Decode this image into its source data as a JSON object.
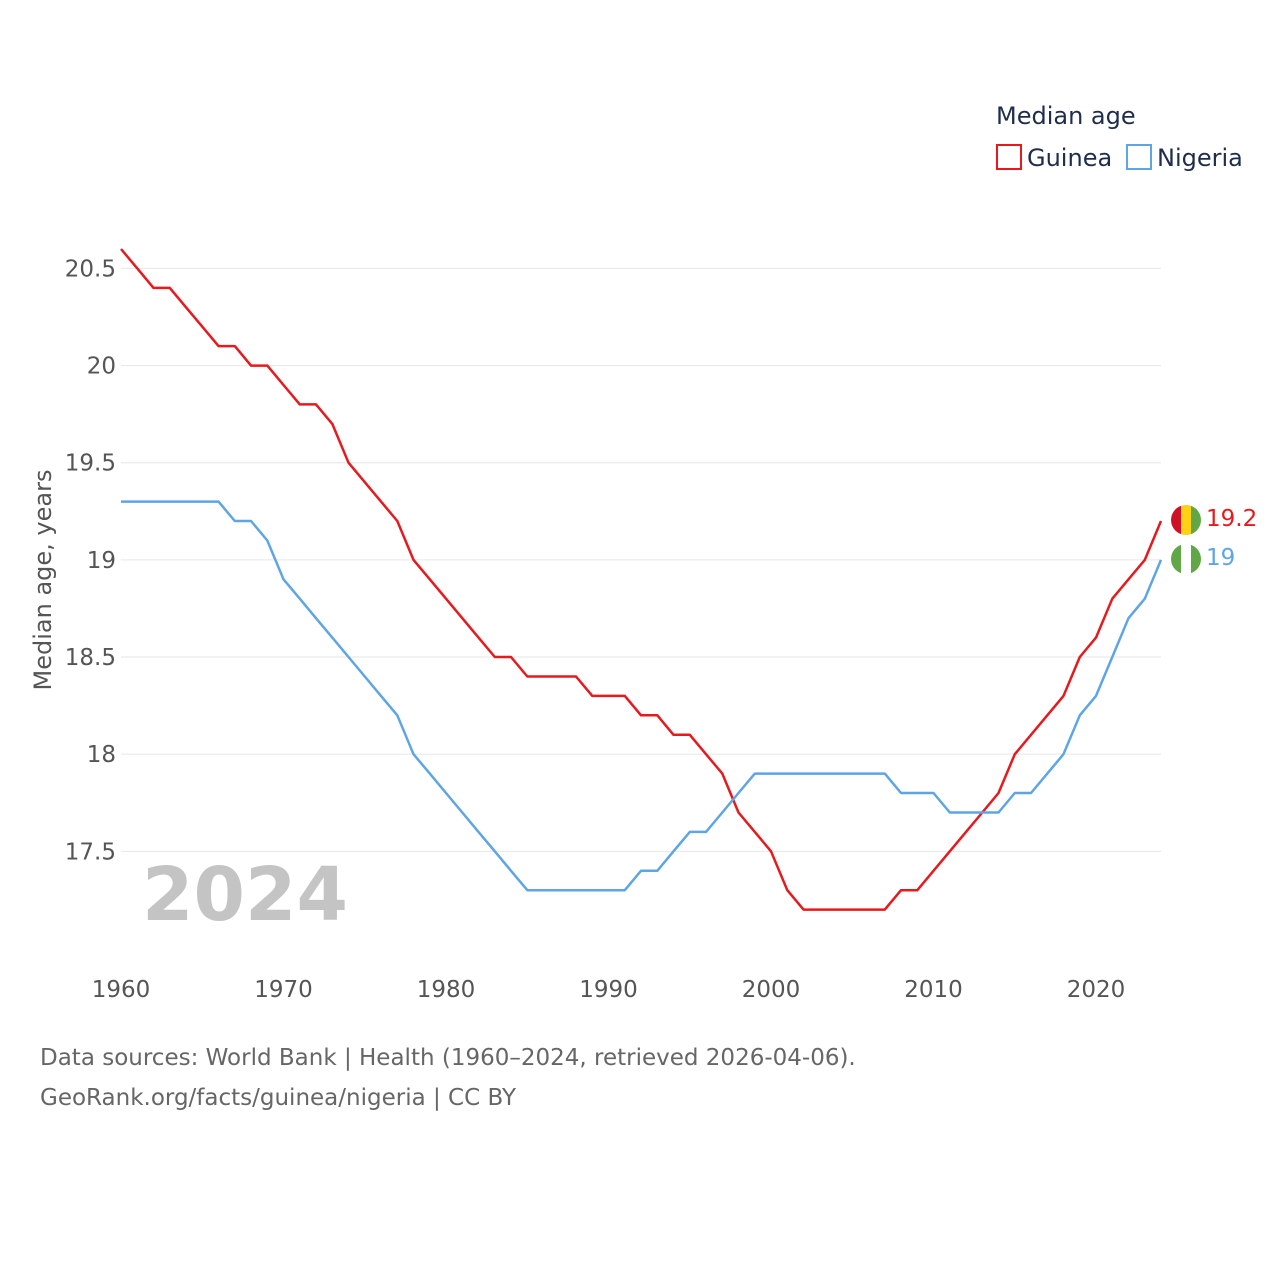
{
  "chart_data": {
    "type": "line",
    "title": "",
    "legend_title": "Median age",
    "xlabel": "",
    "ylabel": "Median age, years",
    "xlim": [
      1960,
      2024
    ],
    "ylim": [
      17,
      20.7
    ],
    "yticks": [
      17.5,
      18,
      18.5,
      19,
      19.5,
      20,
      20.5
    ],
    "ytick_labels": [
      "17.5",
      "18",
      "18.5",
      "19",
      "19.5",
      "20",
      "20.5"
    ],
    "xticks": [
      1960,
      1970,
      1980,
      1990,
      2000,
      2010,
      2020
    ],
    "xtick_labels": [
      "1960",
      "1970",
      "1980",
      "1990",
      "2000",
      "2010",
      "2020"
    ],
    "legend_position": "top-right",
    "year_label": "2024",
    "x": [
      1960,
      1961,
      1962,
      1963,
      1964,
      1965,
      1966,
      1967,
      1968,
      1969,
      1970,
      1971,
      1972,
      1973,
      1974,
      1975,
      1976,
      1977,
      1978,
      1979,
      1980,
      1981,
      1982,
      1983,
      1984,
      1985,
      1986,
      1987,
      1988,
      1989,
      1990,
      1991,
      1992,
      1993,
      1994,
      1995,
      1996,
      1997,
      1998,
      1999,
      2000,
      2001,
      2002,
      2003,
      2004,
      2005,
      2006,
      2007,
      2008,
      2009,
      2010,
      2011,
      2012,
      2013,
      2014,
      2015,
      2016,
      2017,
      2018,
      2019,
      2020,
      2021,
      2022,
      2023,
      2024
    ],
    "series": [
      {
        "name": "Guinea",
        "color": "#e8191c",
        "end_label": "19.2",
        "values": [
          20.6,
          20.5,
          20.4,
          20.4,
          20.3,
          20.2,
          20.1,
          20.1,
          20.0,
          20.0,
          19.9,
          19.8,
          19.8,
          19.7,
          19.5,
          19.4,
          19.3,
          19.2,
          19.0,
          18.9,
          18.8,
          18.7,
          18.6,
          18.5,
          18.5,
          18.4,
          18.4,
          18.4,
          18.4,
          18.3,
          18.3,
          18.3,
          18.2,
          18.2,
          18.1,
          18.1,
          18.0,
          17.9,
          17.7,
          17.6,
          17.5,
          17.3,
          17.2,
          17.2,
          17.2,
          17.2,
          17.2,
          17.2,
          17.3,
          17.3,
          17.4,
          17.5,
          17.6,
          17.7,
          17.8,
          18.0,
          18.1,
          18.2,
          18.3,
          18.5,
          18.6,
          18.8,
          18.9,
          19.0,
          19.2
        ]
      },
      {
        "name": "Nigeria",
        "color": "#5ea5e6",
        "end_label": "19",
        "values": [
          19.3,
          19.3,
          19.3,
          19.3,
          19.3,
          19.3,
          19.3,
          19.2,
          19.2,
          19.1,
          18.9,
          18.8,
          18.7,
          18.6,
          18.5,
          18.4,
          18.3,
          18.2,
          18.0,
          17.9,
          17.8,
          17.7,
          17.6,
          17.5,
          17.4,
          17.3,
          17.3,
          17.3,
          17.3,
          17.3,
          17.3,
          17.3,
          17.4,
          17.4,
          17.5,
          17.6,
          17.6,
          17.7,
          17.8,
          17.9,
          17.9,
          17.9,
          17.9,
          17.9,
          17.9,
          17.9,
          17.9,
          17.9,
          17.8,
          17.8,
          17.8,
          17.7,
          17.7,
          17.7,
          17.7,
          17.8,
          17.8,
          17.9,
          18.0,
          18.2,
          18.3,
          18.5,
          18.7,
          18.8,
          19.0
        ]
      }
    ]
  },
  "footer": {
    "line1": "Data sources: World Bank | Health (1960–2024, retrieved 2026-04-06).",
    "line2": "GeoRank.org/facts/guinea/nigeria | CC BY"
  }
}
